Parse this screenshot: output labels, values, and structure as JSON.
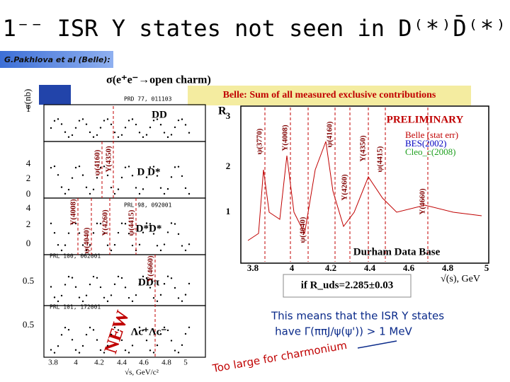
{
  "title": "1⁻⁻ ISR Y states not seen in D⁽*⁾D̄⁽*⁾",
  "author": "G.Pakhlova et al (Belle):",
  "left_plot": {
    "title": "σ(e⁺e⁻→open charm)",
    "y_label": "σ(nb)",
    "x_label": "√s, GeV/c²",
    "x_ticks": [
      "3.8",
      "4",
      "4.2",
      "4.4",
      "4.6",
      "4.8",
      "5"
    ],
    "panels": [
      {
        "label": "DD",
        "reference": "PRD 77, 011103",
        "y_ticks": [
          "1"
        ]
      },
      {
        "label": "D D*",
        "y_ticks": [
          "4",
          "2",
          "0"
        ]
      },
      {
        "label": "D*D*",
        "reference": "PRL 98, 092001",
        "y_ticks": [
          "4",
          "2",
          "0"
        ]
      },
      {
        "label": "DDπ",
        "reference": "PRL 100, 062001",
        "y_ticks": [
          "0.5"
        ]
      },
      {
        "label": "Λc⁺Λc⁻",
        "reference": "PRL 101, 172001",
        "y_ticks": [
          "0.5"
        ]
      }
    ],
    "resonances": [
      "ψ(4160)",
      "Y(4350)",
      "Y(4008)",
      "ψ(4040)",
      "Y(4260)",
      "ψ(4415)",
      "Y(4660)"
    ],
    "note": "NEW"
  },
  "right_plot": {
    "header": "Belle: Sum of all measured exclusive contributions",
    "y_label": "R",
    "y_ticks": [
      "3",
      "2",
      "1"
    ],
    "x_ticks": [
      "3.8",
      "4",
      "4.2",
      "4.4",
      "4.6",
      "4.8",
      "5"
    ],
    "x_label": "√(s), GeV",
    "resonances": [
      "ψ(3770)",
      "Y(4008)",
      "ψ(4160)",
      "Y(4350)",
      "ψ(4415)",
      "Y(4260)",
      "Y(4660)",
      "ψ(4040)"
    ],
    "stamp": "PRELIMINARY",
    "legend": [
      "Belle (stat err)",
      "BES(2002)",
      "Cleo_c(2008)"
    ],
    "source": "Durham Data Base"
  },
  "assumption": "if R_uds=2.285±0.03",
  "conclusion": [
    "This means that the ISR Y states",
    "have Γ(ππJ/ψ(ψ')) > 1 MeV"
  ],
  "comment": "Too large for charmonium"
}
